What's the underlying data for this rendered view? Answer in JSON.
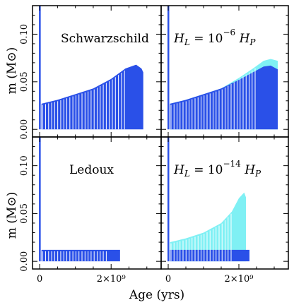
{
  "chart_data": {
    "type": "area",
    "xlabel": "Age (yrs)",
    "ylabel": "m (M⊙)",
    "x_tick_labels": [
      "0",
      "2×10⁹"
    ],
    "y_tick_labels": [
      "0.00",
      "0.05",
      "0.10"
    ],
    "xlim": [
      -200000000.0,
      3400000000.0
    ],
    "ylim": [
      -0.008,
      0.13
    ],
    "colors": {
      "dark": "#2a50e8",
      "light": "#7ff0f4"
    },
    "panels": [
      {
        "id": "top-left",
        "annotation": "Schwarzschild",
        "spike": 0.13,
        "end_age": 2900000000.0,
        "series": [
          {
            "color": "dark",
            "x": [
              50000000.0,
              500000000.0,
              1000000000.0,
              1500000000.0,
              2000000000.0,
              2400000000.0,
              2700000000.0,
              2850000000.0,
              2900000000.0
            ],
            "y": [
              0.027,
              0.031,
              0.037,
              0.043,
              0.053,
              0.064,
              0.068,
              0.064,
              0.06
            ]
          }
        ]
      },
      {
        "id": "top-right",
        "annotation_parts": [
          "H",
          "L",
          " = 10",
          "−6",
          " H",
          "P"
        ],
        "spike": 0.13,
        "end_age": 3100000000.0,
        "series": [
          {
            "color": "light",
            "x": [
              50000000.0,
              500000000.0,
              1000000000.0,
              1500000000.0,
              2000000000.0,
              2400000000.0,
              2700000000.0,
              2900000000.0,
              3100000000.0
            ],
            "y": [
              0.027,
              0.031,
              0.037,
              0.043,
              0.054,
              0.064,
              0.072,
              0.074,
              0.072
            ]
          },
          {
            "color": "dark",
            "x": [
              50000000.0,
              500000000.0,
              1000000000.0,
              1500000000.0,
              2000000000.0,
              2400000000.0,
              2700000000.0,
              2900000000.0,
              3100000000.0
            ],
            "y": [
              0.027,
              0.031,
              0.037,
              0.043,
              0.052,
              0.06,
              0.066,
              0.067,
              0.063
            ]
          }
        ]
      },
      {
        "id": "bottom-left",
        "annotation": "Ledoux",
        "spike": 0.13,
        "end_age": 2300000000.0,
        "series": [
          {
            "color": "dark",
            "x": [
              50000000.0,
              2250000000.0
            ],
            "y": [
              0.012,
              0.012
            ]
          }
        ]
      },
      {
        "id": "bottom-right",
        "annotation_parts": [
          "H",
          "L",
          " = 10",
          "−14",
          " H",
          "P"
        ],
        "spike": 0.13,
        "end_age": 2200000000.0,
        "series": [
          {
            "color": "light",
            "x": [
              50000000.0,
              500000000.0,
              1000000000.0,
              1500000000.0,
              1800000000.0,
              2000000000.0,
              2150000000.0,
              2200000000.0
            ],
            "y": [
              0.02,
              0.024,
              0.03,
              0.04,
              0.052,
              0.066,
              0.072,
              0.067
            ]
          },
          {
            "color": "dark",
            "x": [
              50000000.0,
              2300000000.0
            ],
            "y": [
              0.012,
              0.012
            ]
          }
        ]
      }
    ]
  }
}
